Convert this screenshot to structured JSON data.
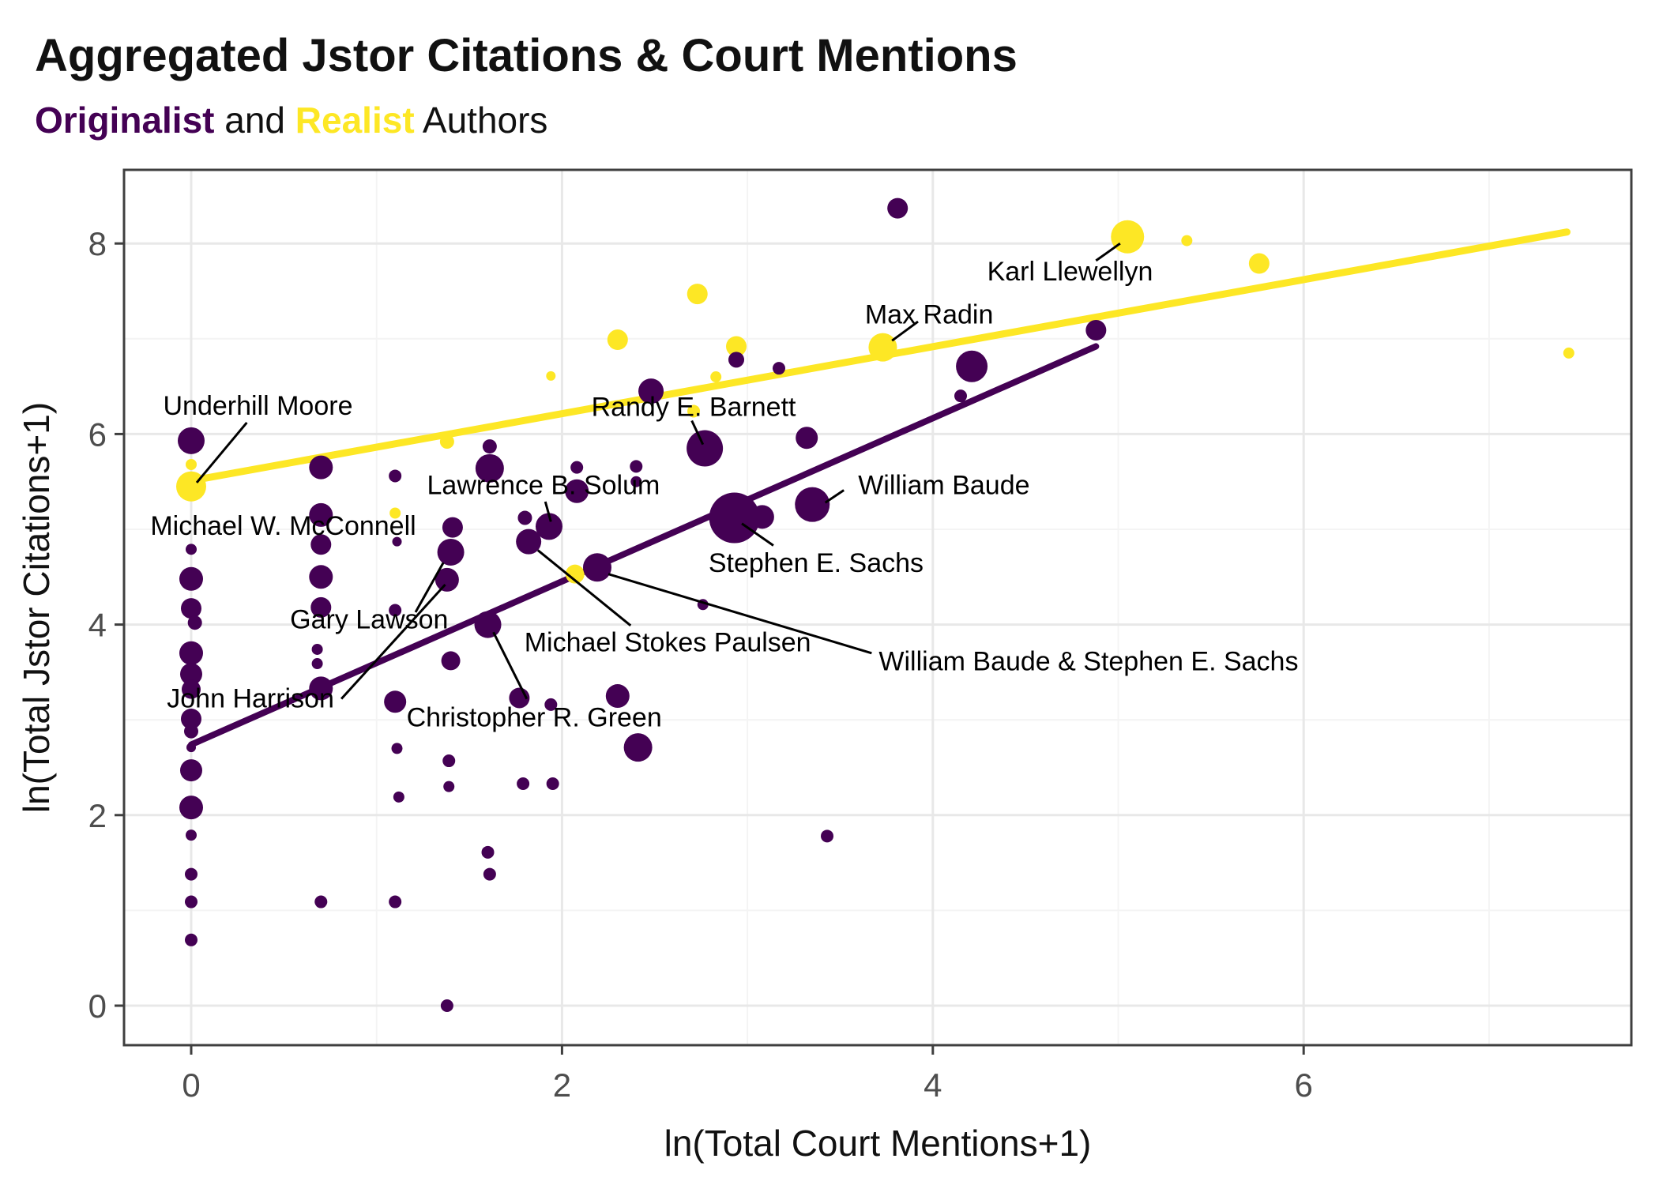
{
  "header": {
    "title": "Aggregated Jstor Citations & Court Mentions",
    "subtitle_part1": "Originalist",
    "subtitle_part2": " and ",
    "subtitle_part3": "Realist",
    "subtitle_part4": " Authors"
  },
  "colors": {
    "originalist": "#440154",
    "realist": "#FDE725",
    "grid_major": "#e8e8e8",
    "grid_minor": "#f4f4f4",
    "panel_border": "#3f3f3f",
    "tick_text": "#4d4d4d",
    "leader": "#000000"
  },
  "chart_data": {
    "type": "scatter",
    "title": "Aggregated Jstor Citations & Court Mentions",
    "subtitle": "Originalist and Realist Authors",
    "xlabel": "ln(Total Court Mentions+1)",
    "ylabel": "ln(Total Jstor Citations+1)",
    "xlim": [
      -0.36,
      7.77
    ],
    "ylim": [
      -0.41,
      8.77
    ],
    "x_ticks": [
      0,
      2,
      4,
      6
    ],
    "y_ticks": [
      0,
      2,
      4,
      6,
      8
    ],
    "x_minor_ticks": [
      1,
      3,
      5,
      7
    ],
    "y_minor_ticks": [
      1,
      3,
      5,
      7
    ],
    "grid": true,
    "legend_position": "none",
    "series": [
      {
        "name": "Realist",
        "color": "#FDE725",
        "points": [
          [
            0.0,
            5.68,
            7
          ],
          [
            0.0,
            5.45,
            19
          ],
          [
            1.1,
            5.17,
            7
          ],
          [
            1.38,
            5.92,
            9
          ],
          [
            1.94,
            6.61,
            6
          ],
          [
            2.07,
            4.53,
            12
          ],
          [
            2.3,
            6.99,
            13
          ],
          [
            2.71,
            6.24,
            8
          ],
          [
            2.73,
            7.47,
            13
          ],
          [
            2.83,
            6.6,
            7
          ],
          [
            2.94,
            6.92,
            13
          ],
          [
            3.73,
            6.91,
            18
          ],
          [
            5.05,
            8.07,
            21
          ],
          [
            5.37,
            8.03,
            7
          ],
          [
            5.76,
            7.79,
            13
          ],
          [
            7.43,
            6.85,
            7
          ]
        ]
      },
      {
        "name": "Originalist",
        "color": "#440154",
        "points": [
          [
            0.0,
            5.93,
            17
          ],
          [
            0.0,
            4.79,
            7
          ],
          [
            0.0,
            4.48,
            15
          ],
          [
            0.0,
            4.17,
            13
          ],
          [
            0.02,
            4.02,
            9
          ],
          [
            0.0,
            3.7,
            15
          ],
          [
            0.0,
            3.48,
            14
          ],
          [
            0.0,
            3.32,
            12
          ],
          [
            0.0,
            3.01,
            13
          ],
          [
            0.0,
            2.88,
            9
          ],
          [
            0.0,
            2.71,
            6
          ],
          [
            0.0,
            2.47,
            14
          ],
          [
            0.0,
            2.08,
            15
          ],
          [
            0.0,
            1.79,
            7
          ],
          [
            0.0,
            1.38,
            8
          ],
          [
            0.0,
            1.09,
            8
          ],
          [
            0.0,
            0.69,
            8
          ],
          [
            0.7,
            5.65,
            15
          ],
          [
            0.7,
            5.15,
            15
          ],
          [
            0.7,
            4.84,
            13
          ],
          [
            0.7,
            4.5,
            15
          ],
          [
            0.7,
            4.18,
            13
          ],
          [
            0.68,
            3.74,
            7
          ],
          [
            0.68,
            3.59,
            7
          ],
          [
            0.7,
            3.33,
            15
          ],
          [
            0.7,
            1.09,
            8
          ],
          [
            1.1,
            5.56,
            8
          ],
          [
            1.11,
            4.87,
            6
          ],
          [
            1.1,
            4.15,
            8
          ],
          [
            1.1,
            3.19,
            14
          ],
          [
            1.11,
            2.7,
            7
          ],
          [
            1.12,
            2.19,
            7
          ],
          [
            1.1,
            1.09,
            8
          ],
          [
            1.41,
            5.02,
            13
          ],
          [
            1.4,
            4.76,
            17
          ],
          [
            1.38,
            4.47,
            15
          ],
          [
            1.4,
            3.62,
            12
          ],
          [
            1.39,
            2.57,
            8
          ],
          [
            1.39,
            2.3,
            7
          ],
          [
            1.38,
            0.0,
            8
          ],
          [
            1.6,
            4.0,
            17
          ],
          [
            1.6,
            1.61,
            8
          ],
          [
            1.61,
            1.38,
            8
          ],
          [
            1.61,
            5.87,
            9
          ],
          [
            1.61,
            5.64,
            18
          ],
          [
            1.8,
            5.12,
            9
          ],
          [
            1.82,
            4.87,
            16
          ],
          [
            1.93,
            5.03,
            17
          ],
          [
            1.77,
            3.23,
            13
          ],
          [
            1.79,
            2.33,
            8
          ],
          [
            1.94,
            3.16,
            8
          ],
          [
            1.95,
            2.33,
            8
          ],
          [
            2.08,
            5.65,
            8
          ],
          [
            2.08,
            5.4,
            15
          ],
          [
            2.19,
            4.6,
            18
          ],
          [
            2.3,
            3.25,
            15
          ],
          [
            2.41,
            2.71,
            18
          ],
          [
            2.4,
            5.66,
            8
          ],
          [
            2.4,
            5.5,
            7
          ],
          [
            2.48,
            6.45,
            16
          ],
          [
            2.77,
            5.85,
            23
          ],
          [
            2.76,
            4.21,
            7
          ],
          [
            2.94,
            6.78,
            10
          ],
          [
            2.93,
            5.12,
            32
          ],
          [
            3.08,
            5.13,
            15
          ],
          [
            3.17,
            6.69,
            8
          ],
          [
            3.32,
            5.96,
            14
          ],
          [
            3.35,
            5.26,
            22
          ],
          [
            3.43,
            1.78,
            8
          ],
          [
            3.81,
            8.37,
            13
          ],
          [
            4.15,
            6.4,
            8
          ],
          [
            4.21,
            6.71,
            20
          ],
          [
            4.88,
            7.09,
            13
          ]
        ]
      }
    ],
    "trend_lines": [
      {
        "series": "Realist",
        "color": "#FDE725",
        "x1": 0.0,
        "y1": 5.51,
        "x2": 7.42,
        "y2": 8.12,
        "width": 9
      },
      {
        "series": "Originalist",
        "color": "#440154",
        "x1": 0.0,
        "y1": 2.74,
        "x2": 4.88,
        "y2": 6.92,
        "width": 8
      }
    ],
    "annotations": [
      {
        "text": "Underhill Moore",
        "x": 0.36,
        "y": 6.3,
        "anchor": "middle"
      },
      {
        "text": "Michael W. McConnell",
        "x": -0.22,
        "y": 5.04,
        "anchor": "start"
      },
      {
        "text": "Randy E. Barnett",
        "x": 2.71,
        "y": 6.29,
        "anchor": "middle"
      },
      {
        "text": "Max Radin",
        "x": 3.98,
        "y": 7.26,
        "anchor": "middle"
      },
      {
        "text": "Karl Llewellyn",
        "x": 4.74,
        "y": 7.71,
        "anchor": "middle"
      },
      {
        "text": "Lawrence B. Solum",
        "x": 1.9,
        "y": 5.47,
        "anchor": "middle"
      },
      {
        "text": "Stephen E. Sachs",
        "x": 3.37,
        "y": 4.65,
        "anchor": "middle"
      },
      {
        "text": "William Baude",
        "x": 4.06,
        "y": 5.47,
        "anchor": "middle"
      },
      {
        "text": "Gary Lawson",
        "x": 0.96,
        "y": 4.06,
        "anchor": "middle"
      },
      {
        "text": "John Harrison",
        "x": 0.32,
        "y": 3.23,
        "anchor": "middle"
      },
      {
        "text": "Michael Stokes Paulsen",
        "x": 2.57,
        "y": 3.82,
        "anchor": "middle"
      },
      {
        "text": "William Baude & Stephen E. Sachs",
        "x": 4.84,
        "y": 3.62,
        "anchor": "middle"
      },
      {
        "text": "Christopher R. Green",
        "x": 1.85,
        "y": 3.03,
        "anchor": "middle"
      }
    ],
    "leader_lines": [
      [
        0.3,
        6.12,
        0.03,
        5.49
      ],
      [
        2.7,
        6.14,
        2.76,
        5.89
      ],
      [
        3.92,
        7.18,
        3.78,
        6.98
      ],
      [
        4.88,
        7.82,
        5.01,
        8.0
      ],
      [
        1.91,
        5.29,
        1.94,
        5.08
      ],
      [
        3.14,
        4.83,
        2.97,
        5.06
      ],
      [
        3.52,
        5.41,
        3.42,
        5.28
      ],
      [
        1.21,
        4.13,
        1.36,
        4.65
      ],
      [
        0.81,
        3.22,
        1.37,
        4.42
      ],
      [
        1.87,
        4.78,
        2.37,
        3.99
      ],
      [
        2.25,
        4.53,
        3.67,
        3.7
      ],
      [
        1.63,
        3.92,
        1.81,
        3.22
      ]
    ]
  }
}
